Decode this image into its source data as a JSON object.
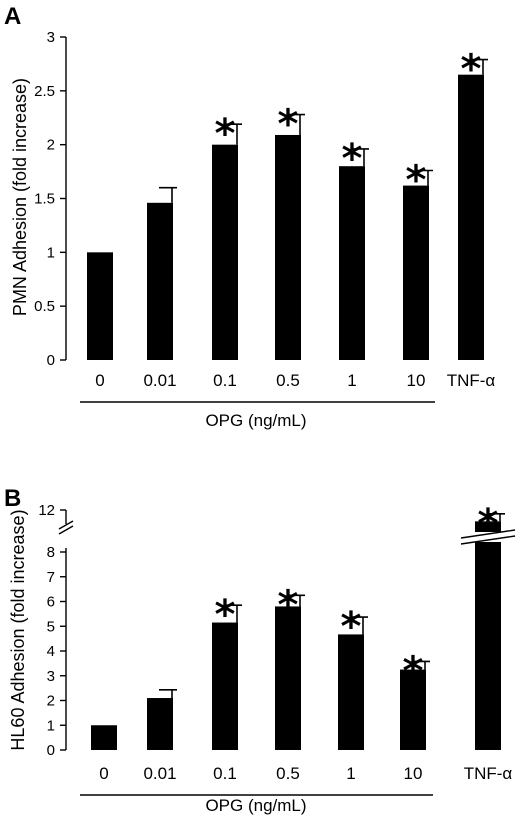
{
  "chart_data": [
    {
      "panel": "A",
      "type": "bar",
      "ylabel": "PMN Adhesion (fold increase)",
      "xlabel": "OPG (ng/mL)",
      "categories": [
        "0",
        "0.01",
        "0.1",
        "0.5",
        "1",
        "10",
        "TNF-α"
      ],
      "values": [
        1.0,
        1.46,
        2.0,
        2.09,
        1.8,
        1.62,
        2.65
      ],
      "errors": [
        0,
        0.14,
        0.19,
        0.19,
        0.16,
        0.14,
        0.14
      ],
      "significant": [
        false,
        false,
        true,
        true,
        true,
        true,
        true
      ],
      "significance_marker": "*",
      "ylim": [
        0,
        3
      ],
      "yticks": [
        "0",
        "0.5",
        "1",
        "1.5",
        "2",
        "2.5",
        "3"
      ],
      "xlabel_spans": [
        "0",
        "0.01",
        "0.1",
        "0.5",
        "1",
        "10"
      ]
    },
    {
      "panel": "B",
      "type": "bar",
      "ylabel": "HL60 Adhesion (fold increase)",
      "xlabel": "OPG (ng/mL)",
      "categories": [
        "0",
        "0.01",
        "0.1",
        "0.5",
        "1",
        "10",
        "TNF-α"
      ],
      "values": [
        1.0,
        2.1,
        5.15,
        5.8,
        4.67,
        3.25,
        10.8
      ],
      "errors": [
        0,
        0.33,
        0.7,
        0.45,
        0.7,
        0.33,
        0.8
      ],
      "significant": [
        false,
        false,
        true,
        true,
        true,
        true,
        true
      ],
      "significance_marker": "*",
      "ylim": [
        0,
        12
      ],
      "axis_break": [
        8.4,
        11.2
      ],
      "yticks": [
        "0",
        "1",
        "2",
        "3",
        "4",
        "5",
        "6",
        "7",
        "8",
        "12"
      ],
      "xlabel_spans": [
        "0",
        "0.01",
        "0.1",
        "0.5",
        "1",
        "10"
      ]
    }
  ]
}
